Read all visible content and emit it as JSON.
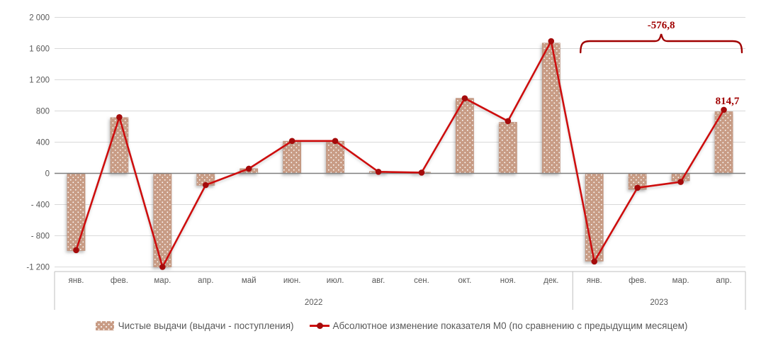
{
  "chart_data": {
    "type": "combo-bar-line",
    "title": "",
    "categories": [
      "янв.",
      "фев.",
      "мар.",
      "апр.",
      "май",
      "июн.",
      "июл.",
      "авг.",
      "сен.",
      "окт.",
      "ноя.",
      "дек.",
      "янв.",
      "фев.",
      "мар.",
      "апр."
    ],
    "year_groups": [
      {
        "label": "2022",
        "start": 0,
        "count": 12
      },
      {
        "label": "2023",
        "start": 12,
        "count": 4
      }
    ],
    "series": [
      {
        "name": "Чистые выдачи (выдачи - поступления)",
        "type": "bar",
        "color": "#C89C85",
        "pattern": "white-dots",
        "values": [
          -990,
          715,
          -1200,
          -153,
          60,
          412,
          412,
          25,
          15,
          962,
          655,
          1670,
          -1125,
          -205,
          -95,
          790
        ]
      },
      {
        "name": "Абсолютное изменение показателя М0 (по сравнению с предыдущим месяцем)",
        "type": "line",
        "color": "#CE0B0B",
        "marker_color": "#A50B0B",
        "values": [
          -985,
          720,
          -1200,
          -150,
          60,
          415,
          415,
          20,
          10,
          962,
          670,
          1695,
          -1130,
          -185,
          -110,
          814.7
        ]
      }
    ],
    "y_axis": {
      "min": -1200,
      "max": 2000,
      "step": 400,
      "tick_labels": [
        "2 000",
        "1 600",
        "1 200",
        "800",
        "400",
        "0",
        "- 400",
        "- 800",
        "-1 200"
      ]
    },
    "grid": true,
    "legend_position": "bottom",
    "annotations": [
      {
        "type": "bracket",
        "label": "-576,8",
        "over_group": "2023"
      },
      {
        "type": "point_label",
        "label": "814,7",
        "series": 1,
        "index": 15
      }
    ]
  },
  "colors": {
    "bar_fill": "#C89C85",
    "bar_edge": "#BC907A",
    "line": "#CE0B0B",
    "marker": "#A50B0B",
    "annotation": "#A00000",
    "gridline": "#D9D9D9",
    "zero_line": "#7F7F7F",
    "axis_text": "#595959",
    "separator": "#BFBFBF"
  }
}
